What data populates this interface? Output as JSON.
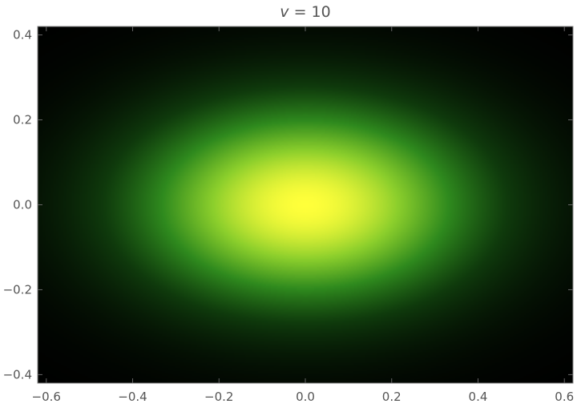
{
  "chart_data": {
    "type": "heatmap",
    "title": "v = 10",
    "title_symbol": "v",
    "title_rest": " = 10",
    "xlabel": "",
    "ylabel": "",
    "xlim": [
      -0.62,
      0.62
    ],
    "ylim": [
      -0.42,
      0.42
    ],
    "x_ticks": [
      -0.6,
      -0.4,
      -0.2,
      0.0,
      0.2,
      0.4,
      0.6
    ],
    "x_tick_labels": [
      "−0.6",
      "−0.4",
      "−0.2",
      "0.0",
      "0.2",
      "0.4",
      "0.6"
    ],
    "y_ticks": [
      -0.4,
      -0.2,
      0.0,
      0.2,
      0.4
    ],
    "y_tick_labels": [
      "−0.4",
      "−0.2",
      "0.0",
      "0.2",
      "0.4"
    ],
    "peak": {
      "x": 0.0,
      "y": 0.0
    },
    "sigma_x": 0.26,
    "sigma_y": 0.155,
    "colormap": [
      "#000000",
      "#0f3a0c",
      "#2f8a1e",
      "#8ccf2c",
      "#ffff3a"
    ],
    "grid": false,
    "legend": "none"
  }
}
